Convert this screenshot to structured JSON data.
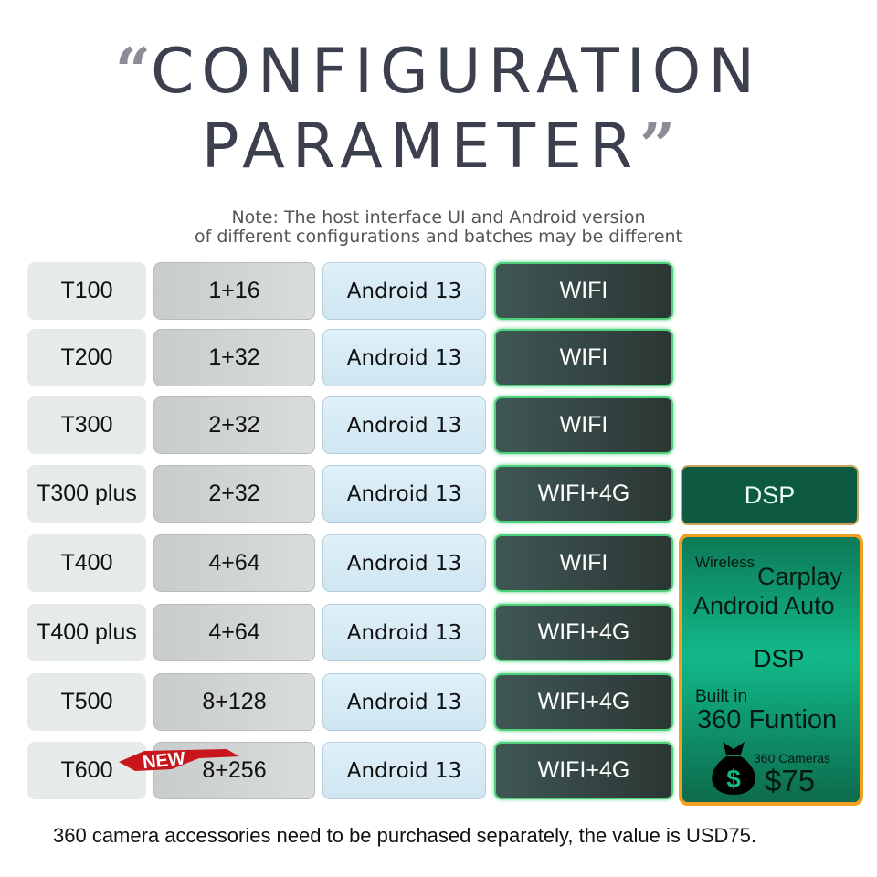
{
  "title": {
    "open_quote": "“",
    "line1": "CONFIGURATION",
    "line2": "PARAMETER",
    "close_quote": "”"
  },
  "note": {
    "line1": "Note: The host interface UI and Android version",
    "line2": "of different configurations and batches may be different"
  },
  "rows": [
    {
      "model": "T100",
      "memory": "1+16",
      "os": "Android 13",
      "network": "WIFI"
    },
    {
      "model": "T200",
      "memory": "1+32",
      "os": "Android 13",
      "network": "WIFI"
    },
    {
      "model": "T300",
      "memory": "2+32",
      "os": "Android 13",
      "network": "WIFI"
    },
    {
      "model": "T300 plus",
      "memory": "2+32",
      "os": "Android 13",
      "network": "WIFI+4G"
    },
    {
      "model": "T400",
      "memory": "4+64",
      "os": "Android 13",
      "network": "WIFI"
    },
    {
      "model": "T400 plus",
      "memory": "4+64",
      "os": "Android 13",
      "network": "WIFI+4G"
    },
    {
      "model": "T500",
      "memory": "8+128",
      "os": "Android 13",
      "network": "WIFI+4G"
    },
    {
      "model": "T600",
      "memory": "8+256",
      "os": "Android 13",
      "network": "WIFI+4G"
    }
  ],
  "new_badge": "NEW",
  "dsp_box": "DSP",
  "features": {
    "wireless": "Wireless",
    "carplay": "Carplay",
    "android_auto": "Android Auto",
    "dsp": "DSP",
    "built_in": "Built in",
    "function": "360 Funtion",
    "cameras": "360 Cameras",
    "price": "$75",
    "icon": "money-bag-icon"
  },
  "footer": "360 camera accessories need to be purchased separately, the value is USD75.",
  "colors": {
    "accent_green": "#12b98a",
    "border_orange": "#f0a020",
    "dark_cell": "#2b3634"
  }
}
